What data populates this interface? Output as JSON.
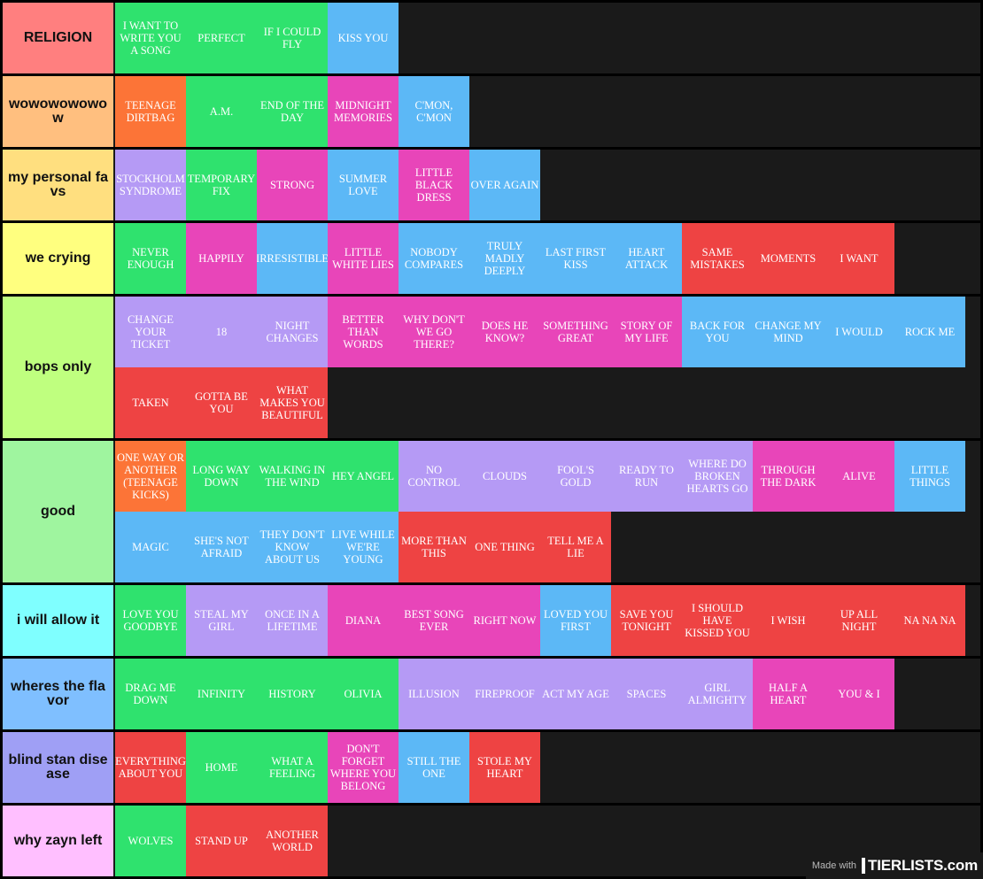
{
  "colors": {
    "green": "#2fe26e",
    "blue": "#5cb8f6",
    "orange": "#fc7437",
    "pink": "#e845b9",
    "purple": "#b59af5",
    "red": "#ee4343"
  },
  "tiers": [
    {
      "label": "RELIGION",
      "color": "#ff7f7f",
      "items": [
        {
          "text": "I WANT TO WRITE YOU A SONG",
          "color": "green"
        },
        {
          "text": "PERFECT",
          "color": "green"
        },
        {
          "text": "IF I COULD FLY",
          "color": "green"
        },
        {
          "text": "KISS YOU",
          "color": "blue"
        }
      ]
    },
    {
      "label": "wowowowowow",
      "color": "#ffbf7f",
      "items": [
        {
          "text": "TEENAGE DIRTBAG",
          "color": "orange"
        },
        {
          "text": "A.M.",
          "color": "green"
        },
        {
          "text": "END OF THE DAY",
          "color": "green"
        },
        {
          "text": "MIDNIGHT MEMORIES",
          "color": "pink"
        },
        {
          "text": "C'MON, C'MON",
          "color": "blue"
        }
      ]
    },
    {
      "label": "my personal favs",
      "color": "#ffdf7f",
      "items": [
        {
          "text": "STOCKHOLM SYNDROME",
          "color": "purple"
        },
        {
          "text": "TEMPORARY FIX",
          "color": "green"
        },
        {
          "text": "STRONG",
          "color": "pink"
        },
        {
          "text": "SUMMER LOVE",
          "color": "blue"
        },
        {
          "text": "LITTLE BLACK DRESS",
          "color": "pink"
        },
        {
          "text": "OVER AGAIN",
          "color": "blue"
        }
      ]
    },
    {
      "label": "we crying",
      "color": "#ffff7f",
      "items": [
        {
          "text": "NEVER ENOUGH",
          "color": "green"
        },
        {
          "text": "HAPPILY",
          "color": "pink"
        },
        {
          "text": "IRRESISTIBLE",
          "color": "blue"
        },
        {
          "text": "LITTLE WHITE LIES",
          "color": "pink"
        },
        {
          "text": "NOBODY COMPARES",
          "color": "blue"
        },
        {
          "text": "TRULY MADLY DEEPLY",
          "color": "blue"
        },
        {
          "text": "LAST FIRST KISS",
          "color": "blue"
        },
        {
          "text": "HEART ATTACK",
          "color": "blue"
        },
        {
          "text": "SAME MISTAKES",
          "color": "red"
        },
        {
          "text": "MOMENTS",
          "color": "red"
        },
        {
          "text": "I WANT",
          "color": "red"
        }
      ]
    },
    {
      "label": "bops only",
      "color": "#bfff7f",
      "items": [
        {
          "text": "CHANGE YOUR TICKET",
          "color": "purple"
        },
        {
          "text": "18",
          "color": "purple"
        },
        {
          "text": "NIGHT CHANGES",
          "color": "purple"
        },
        {
          "text": "BETTER THAN WORDS",
          "color": "pink"
        },
        {
          "text": "WHY DON'T WE GO THERE?",
          "color": "pink"
        },
        {
          "text": "DOES HE KNOW?",
          "color": "pink"
        },
        {
          "text": "SOMETHING GREAT",
          "color": "pink"
        },
        {
          "text": "STORY OF MY LIFE",
          "color": "pink"
        },
        {
          "text": "BACK FOR YOU",
          "color": "blue"
        },
        {
          "text": "CHANGE MY MIND",
          "color": "blue"
        },
        {
          "text": "I WOULD",
          "color": "blue"
        },
        {
          "text": "ROCK ME",
          "color": "blue"
        },
        {
          "text": "TAKEN",
          "color": "red"
        },
        {
          "text": "GOTTA BE YOU",
          "color": "red"
        },
        {
          "text": "WHAT MAKES YOU BEAUTIFUL",
          "color": "red"
        }
      ]
    },
    {
      "label": "good",
      "color": "#9ff59f",
      "items": [
        {
          "text": "ONE WAY OR ANOTHER (TEENAGE KICKS)",
          "color": "orange"
        },
        {
          "text": "LONG WAY DOWN",
          "color": "green"
        },
        {
          "text": "WALKING IN THE WIND",
          "color": "green"
        },
        {
          "text": "HEY ANGEL",
          "color": "green"
        },
        {
          "text": "NO CONTROL",
          "color": "purple"
        },
        {
          "text": "CLOUDS",
          "color": "purple"
        },
        {
          "text": "FOOL'S GOLD",
          "color": "purple"
        },
        {
          "text": "READY TO RUN",
          "color": "purple"
        },
        {
          "text": "WHERE DO BROKEN HEARTS GO",
          "color": "purple"
        },
        {
          "text": "THROUGH THE DARK",
          "color": "pink"
        },
        {
          "text": "ALIVE",
          "color": "pink"
        },
        {
          "text": "LITTLE THINGS",
          "color": "blue"
        },
        {
          "text": "MAGIC",
          "color": "blue"
        },
        {
          "text": "SHE'S NOT AFRAID",
          "color": "blue"
        },
        {
          "text": "THEY DON'T KNOW ABOUT US",
          "color": "blue"
        },
        {
          "text": "LIVE WHILE WE'RE YOUNG",
          "color": "blue"
        },
        {
          "text": "MORE THAN THIS",
          "color": "red"
        },
        {
          "text": "ONE THING",
          "color": "red"
        },
        {
          "text": "TELL ME A LIE",
          "color": "red"
        }
      ]
    },
    {
      "label": "i will allow it",
      "color": "#7fffff",
      "items": [
        {
          "text": "LOVE YOU GOODBYE",
          "color": "green"
        },
        {
          "text": "STEAL MY GIRL",
          "color": "purple"
        },
        {
          "text": "ONCE IN A LIFETIME",
          "color": "purple"
        },
        {
          "text": "DIANA",
          "color": "pink"
        },
        {
          "text": "BEST SONG EVER",
          "color": "pink"
        },
        {
          "text": "RIGHT NOW",
          "color": "pink"
        },
        {
          "text": "LOVED YOU FIRST",
          "color": "blue"
        },
        {
          "text": "SAVE YOU TONIGHT",
          "color": "red"
        },
        {
          "text": "I SHOULD HAVE KISSED YOU",
          "color": "red"
        },
        {
          "text": "I WISH",
          "color": "red"
        },
        {
          "text": "UP ALL NIGHT",
          "color": "red"
        },
        {
          "text": "NA NA NA",
          "color": "red"
        }
      ]
    },
    {
      "label": "wheres the flavor",
      "color": "#7fbfff",
      "items": [
        {
          "text": "DRAG ME DOWN",
          "color": "green"
        },
        {
          "text": "INFINITY",
          "color": "green"
        },
        {
          "text": "HISTORY",
          "color": "green"
        },
        {
          "text": "OLIVIA",
          "color": "green"
        },
        {
          "text": "ILLUSION",
          "color": "purple"
        },
        {
          "text": "FIREPROOF",
          "color": "purple"
        },
        {
          "text": "ACT MY AGE",
          "color": "purple"
        },
        {
          "text": "SPACES",
          "color": "purple"
        },
        {
          "text": "GIRL ALMIGHTY",
          "color": "purple"
        },
        {
          "text": "HALF A HEART",
          "color": "pink"
        },
        {
          "text": "YOU & I",
          "color": "pink"
        }
      ]
    },
    {
      "label": "blind stan disease",
      "color": "#9f9ff5",
      "items": [
        {
          "text": "EVERYTHING ABOUT YOU",
          "color": "red"
        },
        {
          "text": "HOME",
          "color": "green"
        },
        {
          "text": "WHAT A FEELING",
          "color": "green"
        },
        {
          "text": "DON'T FORGET WHERE YOU BELONG",
          "color": "pink"
        },
        {
          "text": "STILL THE ONE",
          "color": "blue"
        },
        {
          "text": "STOLE MY HEART",
          "color": "red"
        }
      ]
    },
    {
      "label": "why zayn left",
      "color": "#ffbfff",
      "items": [
        {
          "text": "WOLVES",
          "color": "green"
        },
        {
          "text": "STAND UP",
          "color": "red"
        },
        {
          "text": "ANOTHER WORLD",
          "color": "red"
        }
      ]
    }
  ],
  "watermark": {
    "made_with": "Made with",
    "logo": "TIERLISTS.com"
  }
}
